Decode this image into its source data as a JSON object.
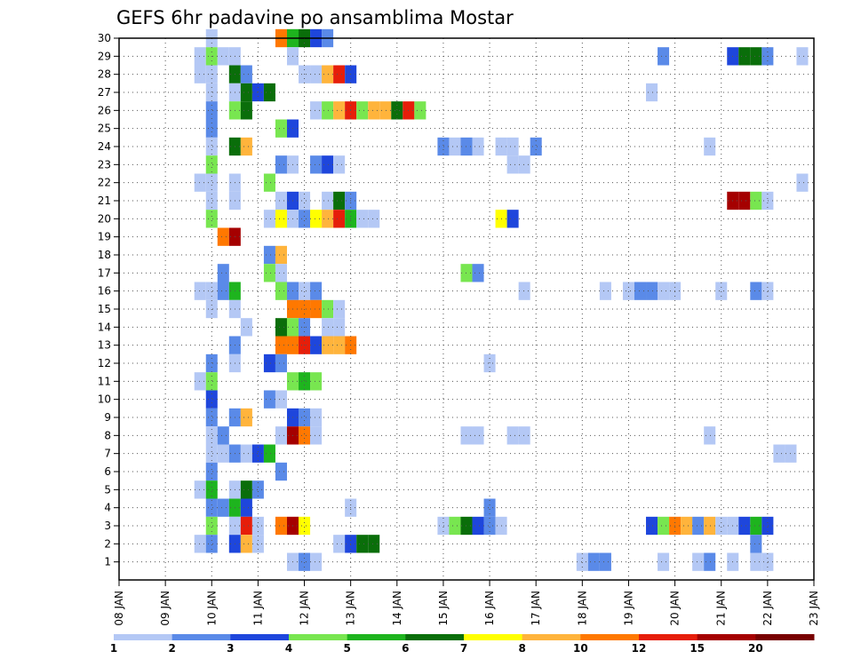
{
  "chart_data": {
    "type": "heatmap",
    "title": "GEFS 6hr padavine po ansamblima Mostar",
    "xlabel": "",
    "ylabel": "",
    "x_tick_labels": [
      "08 JAN",
      "09 JAN",
      "10 JAN",
      "11 JAN",
      "12 JAN",
      "13 JAN",
      "14 JAN",
      "15 JAN",
      "16 JAN",
      "17 JAN",
      "18 JAN",
      "19 JAN",
      "20 JAN",
      "21 JAN",
      "22 JAN",
      "23 JAN"
    ],
    "x_range_days": [
      0,
      15
    ],
    "y_tick_labels": [
      "1",
      "2",
      "3",
      "4",
      "5",
      "6",
      "7",
      "8",
      "9",
      "10",
      "11",
      "12",
      "13",
      "14",
      "15",
      "16",
      "17",
      "18",
      "19",
      "20",
      "21",
      "22",
      "23",
      "24",
      "25",
      "26",
      "27",
      "28",
      "29",
      "30"
    ],
    "y_range": [
      0,
      30
    ],
    "grid": true,
    "time_step_days": 0.25,
    "colorbar": {
      "levels": [
        "1",
        "2",
        "3",
        "4",
        "5",
        "6",
        "7",
        "8",
        "10",
        "12",
        "15",
        "20"
      ],
      "colors": [
        "#b4c8f5",
        "#5a8ae8",
        "#1e46dc",
        "#78e650",
        "#1eb41e",
        "#0a6e0a",
        "#ffff00",
        "#ffb43c",
        "#ff7800",
        "#e61e0a",
        "#a50000",
        "#780000"
      ]
    },
    "cells": [
      [
        30,
        2,
        0
      ],
      [
        30,
        3.5,
        8
      ],
      [
        30,
        3.75,
        4
      ],
      [
        30,
        4,
        5
      ],
      [
        30,
        4.25,
        2
      ],
      [
        30,
        4.5,
        1
      ],
      [
        29,
        1.75,
        0
      ],
      [
        29,
        2,
        3
      ],
      [
        29,
        2.25,
        0
      ],
      [
        29,
        2.5,
        0
      ],
      [
        29,
        3.75,
        0
      ],
      [
        29,
        11.75,
        1
      ],
      [
        29,
        13.25,
        2
      ],
      [
        29,
        13.5,
        5
      ],
      [
        29,
        13.75,
        5
      ],
      [
        29,
        14,
        1
      ],
      [
        29,
        14.75,
        0
      ],
      [
        28,
        1.75,
        0
      ],
      [
        28,
        2,
        0
      ],
      [
        28,
        2.5,
        5
      ],
      [
        28,
        2.75,
        1
      ],
      [
        28,
        4,
        0
      ],
      [
        28,
        4.25,
        0
      ],
      [
        28,
        4.5,
        7
      ],
      [
        28,
        4.75,
        9
      ],
      [
        28,
        5,
        2
      ],
      [
        27,
        2,
        0
      ],
      [
        27,
        2.5,
        0
      ],
      [
        27,
        2.75,
        5
      ],
      [
        27,
        3,
        2
      ],
      [
        27,
        3.25,
        5
      ],
      [
        27,
        11.5,
        0
      ],
      [
        26,
        2,
        1
      ],
      [
        26,
        2.5,
        3
      ],
      [
        26,
        2.75,
        5
      ],
      [
        26,
        4.25,
        0
      ],
      [
        26,
        4.5,
        3
      ],
      [
        26,
        4.75,
        7
      ],
      [
        26,
        5,
        9
      ],
      [
        26,
        5.25,
        3
      ],
      [
        26,
        5.5,
        7
      ],
      [
        26,
        5.75,
        7
      ],
      [
        26,
        6,
        5
      ],
      [
        26,
        6.25,
        9
      ],
      [
        26,
        6.5,
        3
      ],
      [
        25,
        2,
        1
      ],
      [
        25,
        3.5,
        3
      ],
      [
        25,
        3.75,
        2
      ],
      [
        24,
        2,
        0
      ],
      [
        24,
        2.5,
        5
      ],
      [
        24,
        2.75,
        7
      ],
      [
        24,
        7,
        1
      ],
      [
        24,
        7.25,
        0
      ],
      [
        24,
        7.5,
        1
      ],
      [
        24,
        7.75,
        0
      ],
      [
        24,
        8.25,
        0
      ],
      [
        24,
        8.5,
        0
      ],
      [
        24,
        9,
        1
      ],
      [
        24,
        12.75,
        0
      ],
      [
        23,
        2,
        3
      ],
      [
        23,
        3.5,
        1
      ],
      [
        23,
        3.75,
        0
      ],
      [
        23,
        4.25,
        1
      ],
      [
        23,
        4.5,
        2
      ],
      [
        23,
        4.75,
        0
      ],
      [
        23,
        8.5,
        0
      ],
      [
        23,
        8.75,
        0
      ],
      [
        22,
        1.75,
        0
      ],
      [
        22,
        2,
        0
      ],
      [
        22,
        2.5,
        0
      ],
      [
        22,
        3.25,
        3
      ],
      [
        22,
        14.75,
        0
      ],
      [
        21,
        2,
        0
      ],
      [
        21,
        2.5,
        0
      ],
      [
        21,
        3.5,
        0
      ],
      [
        21,
        3.75,
        2
      ],
      [
        21,
        4,
        0
      ],
      [
        21,
        4.5,
        0
      ],
      [
        21,
        4.75,
        5
      ],
      [
        21,
        5,
        1
      ],
      [
        21,
        13.25,
        10
      ],
      [
        21,
        13.5,
        10
      ],
      [
        21,
        13.75,
        3
      ],
      [
        21,
        14,
        0
      ],
      [
        20,
        2,
        3
      ],
      [
        20,
        3.25,
        0
      ],
      [
        20,
        3.5,
        6
      ],
      [
        20,
        3.75,
        0
      ],
      [
        20,
        4,
        1
      ],
      [
        20,
        4.25,
        6
      ],
      [
        20,
        4.5,
        7
      ],
      [
        20,
        4.75,
        9
      ],
      [
        20,
        5,
        4
      ],
      [
        20,
        5.25,
        0
      ],
      [
        20,
        5.5,
        0
      ],
      [
        20,
        8.25,
        6
      ],
      [
        20,
        8.5,
        2
      ],
      [
        19,
        2.25,
        8
      ],
      [
        19,
        2.5,
        10
      ],
      [
        18,
        3.25,
        1
      ],
      [
        18,
        3.5,
        7
      ],
      [
        17,
        2.25,
        1
      ],
      [
        17,
        3.25,
        3
      ],
      [
        17,
        3.5,
        0
      ],
      [
        17,
        7.5,
        3
      ],
      [
        17,
        7.75,
        1
      ],
      [
        16,
        1.75,
        0
      ],
      [
        16,
        2,
        0
      ],
      [
        16,
        2.25,
        1
      ],
      [
        16,
        2.5,
        4
      ],
      [
        16,
        3.5,
        3
      ],
      [
        16,
        3.75,
        1
      ],
      [
        16,
        4,
        0
      ],
      [
        16,
        4.25,
        1
      ],
      [
        16,
        8.75,
        0
      ],
      [
        16,
        10.5,
        0
      ],
      [
        16,
        11,
        0
      ],
      [
        16,
        11.25,
        1
      ],
      [
        16,
        11.5,
        1
      ],
      [
        16,
        11.75,
        0
      ],
      [
        16,
        12,
        0
      ],
      [
        16,
        13,
        0
      ],
      [
        16,
        13.75,
        1
      ],
      [
        16,
        14,
        0
      ],
      [
        15,
        2,
        0
      ],
      [
        15,
        2.5,
        0
      ],
      [
        15,
        3.75,
        8
      ],
      [
        15,
        4,
        8
      ],
      [
        15,
        4.25,
        8
      ],
      [
        15,
        4.5,
        3
      ],
      [
        15,
        4.75,
        0
      ],
      [
        14,
        2.75,
        0
      ],
      [
        14,
        3.5,
        5
      ],
      [
        14,
        3.75,
        3
      ],
      [
        14,
        4,
        1
      ],
      [
        14,
        4.5,
        0
      ],
      [
        14,
        4.75,
        0
      ],
      [
        13,
        2.5,
        1
      ],
      [
        13,
        3.5,
        8
      ],
      [
        13,
        3.75,
        8
      ],
      [
        13,
        4,
        9
      ],
      [
        13,
        4.25,
        2
      ],
      [
        13,
        4.5,
        7
      ],
      [
        13,
        4.75,
        7
      ],
      [
        13,
        5,
        8
      ],
      [
        12,
        2,
        1
      ],
      [
        12,
        2.5,
        0
      ],
      [
        12,
        3.25,
        2
      ],
      [
        12,
        3.5,
        1
      ],
      [
        12,
        8,
        0
      ],
      [
        11,
        1.75,
        0
      ],
      [
        11,
        2,
        3
      ],
      [
        11,
        3.75,
        3
      ],
      [
        11,
        4,
        4
      ],
      [
        11,
        4.25,
        3
      ],
      [
        10,
        2,
        2
      ],
      [
        10,
        3.25,
        1
      ],
      [
        10,
        3.5,
        0
      ],
      [
        9,
        2,
        1
      ],
      [
        9,
        2.5,
        1
      ],
      [
        9,
        2.75,
        7
      ],
      [
        9,
        3.75,
        2
      ],
      [
        9,
        4,
        1
      ],
      [
        9,
        4.25,
        0
      ],
      [
        8,
        2,
        0
      ],
      [
        8,
        2.25,
        1
      ],
      [
        8,
        3.5,
        0
      ],
      [
        8,
        3.75,
        10
      ],
      [
        8,
        4,
        8
      ],
      [
        8,
        4.25,
        0
      ],
      [
        8,
        7.5,
        0
      ],
      [
        8,
        7.75,
        0
      ],
      [
        8,
        8.5,
        0
      ],
      [
        8,
        8.75,
        0
      ],
      [
        8,
        12.75,
        0
      ],
      [
        7,
        2,
        0
      ],
      [
        7,
        2.25,
        0
      ],
      [
        7,
        2.5,
        1
      ],
      [
        7,
        2.75,
        0
      ],
      [
        7,
        3,
        2
      ],
      [
        7,
        3.25,
        4
      ],
      [
        7,
        14.25,
        0
      ],
      [
        7,
        14.5,
        0
      ],
      [
        6,
        2,
        1
      ],
      [
        6,
        3.5,
        1
      ],
      [
        5,
        1.75,
        0
      ],
      [
        5,
        2,
        4
      ],
      [
        5,
        2.5,
        0
      ],
      [
        5,
        2.75,
        5
      ],
      [
        5,
        3,
        1
      ],
      [
        4,
        2,
        1
      ],
      [
        4,
        2.25,
        1
      ],
      [
        4,
        2.5,
        4
      ],
      [
        4,
        2.75,
        2
      ],
      [
        4,
        5,
        0
      ],
      [
        4,
        8,
        1
      ],
      [
        3,
        2,
        3
      ],
      [
        3,
        2.5,
        0
      ],
      [
        3,
        2.75,
        9
      ],
      [
        3,
        3,
        0
      ],
      [
        3,
        3.5,
        8
      ],
      [
        3,
        3.75,
        10
      ],
      [
        3,
        4,
        6
      ],
      [
        3,
        7,
        0
      ],
      [
        3,
        7.25,
        3
      ],
      [
        3,
        7.5,
        5
      ],
      [
        3,
        7.75,
        2
      ],
      [
        3,
        8,
        1
      ],
      [
        3,
        8.25,
        0
      ],
      [
        3,
        11.5,
        2
      ],
      [
        3,
        11.75,
        3
      ],
      [
        3,
        12,
        8
      ],
      [
        3,
        12.25,
        7
      ],
      [
        3,
        12.5,
        1
      ],
      [
        3,
        12.75,
        7
      ],
      [
        3,
        13,
        0
      ],
      [
        3,
        13.25,
        0
      ],
      [
        3,
        13.5,
        2
      ],
      [
        3,
        13.75,
        4
      ],
      [
        3,
        14,
        2
      ],
      [
        2,
        1.75,
        0
      ],
      [
        2,
        2,
        1
      ],
      [
        2,
        2.5,
        2
      ],
      [
        2,
        2.75,
        7
      ],
      [
        2,
        3,
        0
      ],
      [
        2,
        4.75,
        0
      ],
      [
        2,
        5,
        2
      ],
      [
        2,
        5.25,
        5
      ],
      [
        2,
        5.5,
        5
      ],
      [
        2,
        13.75,
        1
      ],
      [
        1,
        3.75,
        0
      ],
      [
        1,
        4,
        1
      ],
      [
        1,
        4.25,
        0
      ],
      [
        1,
        10,
        0
      ],
      [
        1,
        10.25,
        1
      ],
      [
        1,
        10.5,
        1
      ],
      [
        1,
        11.75,
        0
      ],
      [
        1,
        12.5,
        0
      ],
      [
        1,
        12.75,
        1
      ],
      [
        1,
        13.25,
        0
      ],
      [
        1,
        13.75,
        0
      ],
      [
        1,
        14,
        0
      ]
    ]
  }
}
